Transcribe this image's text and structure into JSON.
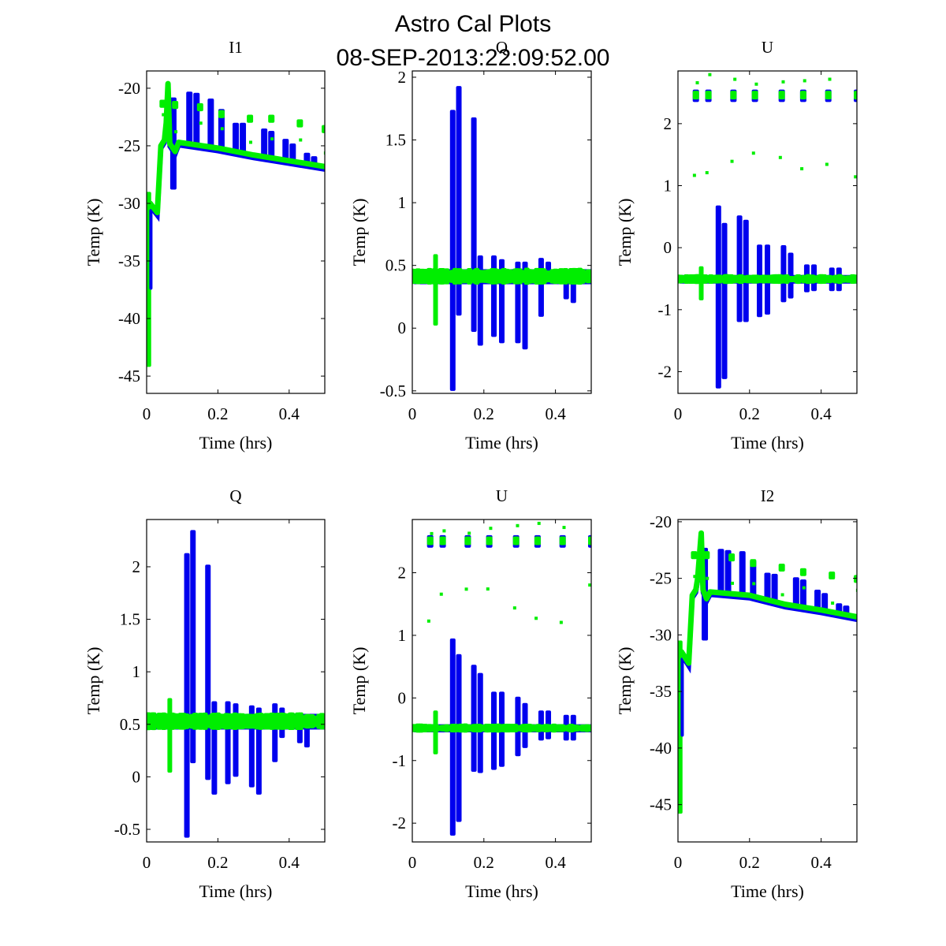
{
  "figure": {
    "title_line1": "Astro Cal Plots",
    "title_line2": "08-SEP-2013:22:09:52.00"
  },
  "colors": {
    "series1": "#0000ee",
    "series2": "#00ee00"
  },
  "chart_data": [
    {
      "type": "scatter",
      "title": "I1",
      "xlabel": "Time (hrs)",
      "ylabel": "Temp (K)",
      "xlim": [
        0,
        0.5
      ],
      "ylim": [
        -46.5,
        -18.5
      ],
      "xticks": [
        "0",
        "0.2",
        "0.4"
      ],
      "xtick_values": [
        0,
        0.2,
        0.4
      ],
      "yticks": [
        "-20",
        "-25",
        "-30",
        "-35",
        "-40",
        "-45"
      ],
      "ytick_values": [
        -20,
        -25,
        -30,
        -35,
        -40,
        -45
      ],
      "kind": "temp",
      "baseline": [
        [
          0.0,
          -30.5
        ],
        [
          0.01,
          -30.0
        ],
        [
          0.03,
          -30.8
        ],
        [
          0.04,
          -25.0
        ],
        [
          0.05,
          -24.5
        ],
        [
          0.055,
          -23.0
        ],
        [
          0.06,
          -19.6
        ],
        [
          0.065,
          -24.8
        ],
        [
          0.08,
          -25.5
        ],
        [
          0.09,
          -24.7
        ],
        [
          0.2,
          -25.2
        ],
        [
          0.3,
          -25.8
        ],
        [
          0.4,
          -26.3
        ],
        [
          0.5,
          -26.8
        ]
      ],
      "dip": [
        0.0,
        -44.2
      ],
      "spikes_blue": [
        [
          0.075,
          -20.8,
          -28.8
        ],
        [
          0.12,
          -20.3
        ],
        [
          0.14,
          -20.4
        ],
        [
          0.18,
          -20.9
        ],
        [
          0.21,
          -21.8
        ],
        [
          0.25,
          -23.0
        ],
        [
          0.27,
          -23.0
        ],
        [
          0.33,
          -23.5
        ],
        [
          0.35,
          -23.7
        ],
        [
          0.39,
          -24.4
        ],
        [
          0.41,
          -24.8
        ],
        [
          0.45,
          -25.6
        ],
        [
          0.47,
          -25.9
        ]
      ],
      "spikes_green": [
        [
          0.045,
          -21.3
        ],
        [
          0.08,
          -21.4
        ],
        [
          0.15,
          -21.6
        ],
        [
          0.21,
          -22.2
        ],
        [
          0.29,
          -22.6
        ],
        [
          0.35,
          -22.6
        ],
        [
          0.43,
          -23.0
        ],
        [
          0.5,
          -23.5
        ]
      ]
    },
    {
      "type": "scatter",
      "title": "Q",
      "xlabel": "Time (hrs)",
      "ylabel": "Temp (K)",
      "xlim": [
        0,
        0.5
      ],
      "ylim": [
        -0.52,
        2.05
      ],
      "xticks": [
        "0",
        "0.2",
        "0.4"
      ],
      "xtick_values": [
        0,
        0.2,
        0.4
      ],
      "yticks": [
        "2",
        "1.5",
        "1",
        "0.5",
        "0",
        "-0.5"
      ],
      "ytick_values": [
        2,
        1.5,
        1,
        0.5,
        0,
        -0.5
      ],
      "kind": "pol",
      "band": [
        0.35,
        0.47
      ],
      "spikes_blue": [
        [
          0.113,
          1.74,
          -0.5
        ],
        [
          0.13,
          1.93,
          0.1
        ],
        [
          0.172,
          1.68,
          -0.03
        ],
        [
          0.19,
          0.58,
          -0.14
        ],
        [
          0.228,
          0.58,
          -0.07
        ],
        [
          0.25,
          0.55,
          -0.12
        ],
        [
          0.295,
          0.53,
          -0.12
        ],
        [
          0.315,
          0.53,
          -0.17
        ],
        [
          0.36,
          0.56,
          0.09
        ],
        [
          0.38,
          0.53,
          0.35
        ],
        [
          0.43,
          0.47,
          0.23
        ],
        [
          0.45,
          0.46,
          0.2
        ]
      ],
      "spikes_green": [
        [
          0.065,
          0.59,
          0.02
        ]
      ]
    },
    {
      "type": "scatter",
      "title": "U",
      "xlabel": "Time (hrs)",
      "ylabel": "Temp (K)",
      "xlim": [
        0,
        0.5
      ],
      "ylim": [
        -2.35,
        2.85
      ],
      "xticks": [
        "0",
        "0.2",
        "0.4"
      ],
      "xtick_values": [
        0,
        0.2,
        0.4
      ],
      "yticks": [
        "2",
        "1",
        "0",
        "-1",
        "-2"
      ],
      "ytick_values": [
        2,
        1,
        0,
        -1,
        -2
      ],
      "kind": "pol",
      "band": [
        -0.58,
        -0.44
      ],
      "spikes_blue": [
        [
          0.113,
          0.68,
          -2.27
        ],
        [
          0.13,
          0.4,
          -2.12
        ],
        [
          0.172,
          0.52,
          -1.2
        ],
        [
          0.19,
          0.45,
          -1.2
        ],
        [
          0.228,
          0.05,
          -1.12
        ],
        [
          0.25,
          0.05,
          -1.08
        ],
        [
          0.295,
          0.04,
          -0.88
        ],
        [
          0.315,
          -0.08,
          -0.82
        ],
        [
          0.36,
          -0.27,
          -0.72
        ],
        [
          0.38,
          -0.27,
          -0.7
        ],
        [
          0.43,
          -0.32,
          -0.7
        ],
        [
          0.45,
          -0.32,
          -0.7
        ]
      ],
      "spikes_green": [
        [
          0.065,
          -0.3,
          -0.85
        ]
      ],
      "top_clusters": [
        0.05,
        0.085,
        0.155,
        0.215,
        0.29,
        0.35,
        0.42,
        0.5
      ],
      "top_level": 2.45
    },
    {
      "type": "scatter",
      "title": "Q",
      "xlabel": "Time (hrs)",
      "ylabel": "Temp (K)",
      "xlim": [
        0,
        0.5
      ],
      "ylim": [
        -0.62,
        2.45
      ],
      "xticks": [
        "0",
        "0.2",
        "0.4"
      ],
      "xtick_values": [
        0,
        0.2,
        0.4
      ],
      "yticks": [
        "2",
        "1.5",
        "1",
        "0.5",
        "0",
        "-0.5"
      ],
      "ytick_values": [
        2,
        1.5,
        1,
        0.5,
        0,
        -0.5
      ],
      "kind": "pol",
      "band": [
        0.45,
        0.6
      ],
      "spikes_blue": [
        [
          0.113,
          2.13,
          -0.58
        ],
        [
          0.13,
          2.35,
          0.13
        ],
        [
          0.172,
          2.02,
          -0.03
        ],
        [
          0.19,
          0.72,
          -0.17
        ],
        [
          0.228,
          0.72,
          -0.07
        ],
        [
          0.25,
          0.7,
          -0.0
        ],
        [
          0.295,
          0.68,
          -0.1
        ],
        [
          0.315,
          0.66,
          -0.17
        ],
        [
          0.36,
          0.7,
          0.14
        ],
        [
          0.38,
          0.66,
          0.37
        ],
        [
          0.43,
          0.6,
          0.32
        ],
        [
          0.45,
          0.6,
          0.28
        ]
      ],
      "spikes_green": [
        [
          0.065,
          0.75,
          0.04
        ]
      ]
    },
    {
      "type": "scatter",
      "title": "U",
      "xlabel": "Time (hrs)",
      "ylabel": "Temp (K)",
      "xlim": [
        0,
        0.5
      ],
      "ylim": [
        -2.3,
        2.85
      ],
      "xticks": [
        "0",
        "0.2",
        "0.4"
      ],
      "xtick_values": [
        0,
        0.2,
        0.4
      ],
      "yticks": [
        "2",
        "1",
        "0",
        "-1",
        "-2"
      ],
      "ytick_values": [
        2,
        1,
        0,
        -1,
        -2
      ],
      "kind": "pol",
      "band": [
        -0.55,
        -0.42
      ],
      "spikes_blue": [
        [
          0.113,
          0.95,
          -2.2
        ],
        [
          0.13,
          0.7,
          -1.98
        ],
        [
          0.172,
          0.53,
          -1.18
        ],
        [
          0.19,
          0.4,
          -1.2
        ],
        [
          0.228,
          0.1,
          -1.15
        ],
        [
          0.25,
          0.1,
          -1.1
        ],
        [
          0.295,
          0.02,
          -0.93
        ],
        [
          0.315,
          -0.08,
          -0.8
        ],
        [
          0.36,
          -0.2,
          -0.68
        ],
        [
          0.38,
          -0.2,
          -0.66
        ],
        [
          0.43,
          -0.27,
          -0.68
        ],
        [
          0.45,
          -0.27,
          -0.68
        ]
      ],
      "spikes_green": [
        [
          0.065,
          -0.2,
          -0.9
        ]
      ],
      "top_clusters": [
        0.05,
        0.085,
        0.155,
        0.215,
        0.29,
        0.35,
        0.42,
        0.5
      ],
      "top_level": 2.5
    },
    {
      "type": "scatter",
      "title": "I2",
      "xlabel": "Time (hrs)",
      "ylabel": "Temp (K)",
      "xlim": [
        0,
        0.5
      ],
      "ylim": [
        -48.3,
        -19.8
      ],
      "xticks": [
        "0",
        "0.2",
        "0.4"
      ],
      "xtick_values": [
        0,
        0.2,
        0.4
      ],
      "yticks": [
        "-20",
        "-25",
        "-30",
        "-35",
        "-40",
        "-45"
      ],
      "ytick_values": [
        -20,
        -25,
        -30,
        -35,
        -40,
        -45
      ],
      "kind": "temp",
      "baseline": [
        [
          0.0,
          -32.0
        ],
        [
          0.01,
          -31.5
        ],
        [
          0.03,
          -32.5
        ],
        [
          0.04,
          -26.5
        ],
        [
          0.05,
          -26.0
        ],
        [
          0.055,
          -25.0
        ],
        [
          0.065,
          -21.0
        ],
        [
          0.07,
          -26.0
        ],
        [
          0.08,
          -26.8
        ],
        [
          0.09,
          -26.2
        ],
        [
          0.2,
          -26.5
        ],
        [
          0.3,
          -27.3
        ],
        [
          0.4,
          -27.8
        ],
        [
          0.5,
          -28.4
        ]
      ],
      "dip": [
        0.0,
        -45.8
      ],
      "spikes_blue": [
        [
          0.075,
          -22.3,
          -30.5
        ],
        [
          0.12,
          -22.4
        ],
        [
          0.14,
          -22.5
        ],
        [
          0.18,
          -22.6
        ],
        [
          0.21,
          -23.4
        ],
        [
          0.25,
          -24.5
        ],
        [
          0.27,
          -24.6
        ],
        [
          0.33,
          -24.9
        ],
        [
          0.35,
          -25.1
        ],
        [
          0.39,
          -26.0
        ],
        [
          0.41,
          -26.3
        ],
        [
          0.45,
          -27.2
        ],
        [
          0.47,
          -27.4
        ]
      ],
      "spikes_green": [
        [
          0.045,
          -22.9
        ],
        [
          0.08,
          -22.9
        ],
        [
          0.15,
          -23.1
        ],
        [
          0.21,
          -23.6
        ],
        [
          0.29,
          -24.0
        ],
        [
          0.35,
          -24.4
        ],
        [
          0.43,
          -24.7
        ],
        [
          0.5,
          -25.0
        ]
      ]
    }
  ]
}
